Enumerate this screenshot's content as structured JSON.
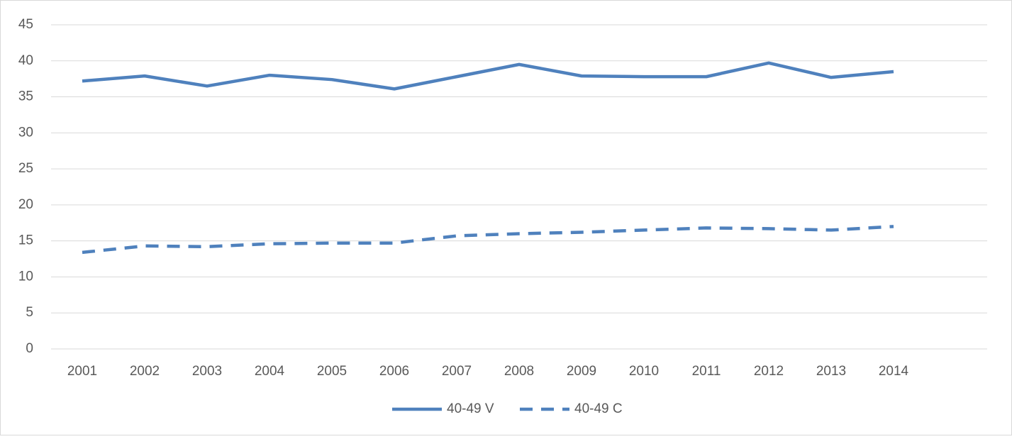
{
  "chart_data": {
    "type": "line",
    "categories": [
      "2001",
      "2002",
      "2003",
      "2004",
      "2005",
      "2006",
      "2007",
      "2008",
      "2009",
      "2010",
      "2011",
      "2012",
      "2013",
      "2014",
      null
    ],
    "series": [
      {
        "name": "40-49 V",
        "color": "#4f81bd",
        "line_style": "solid",
        "values": [
          37.2,
          37.9,
          36.5,
          38.0,
          37.4,
          36.1,
          37.8,
          39.5,
          37.9,
          37.8,
          37.8,
          39.7,
          37.7,
          38.5,
          null
        ]
      },
      {
        "name": "40-49 C",
        "color": "#4f81bd",
        "line_style": "dashed",
        "values": [
          13.4,
          14.3,
          14.2,
          14.6,
          14.7,
          14.7,
          15.7,
          16.0,
          16.2,
          16.5,
          16.8,
          16.7,
          16.5,
          17.0,
          null
        ]
      }
    ],
    "ylim": [
      0,
      45
    ],
    "yticks": [
      0,
      5,
      10,
      15,
      20,
      25,
      30,
      35,
      40,
      45
    ],
    "grid": true,
    "legend": "bottom"
  }
}
